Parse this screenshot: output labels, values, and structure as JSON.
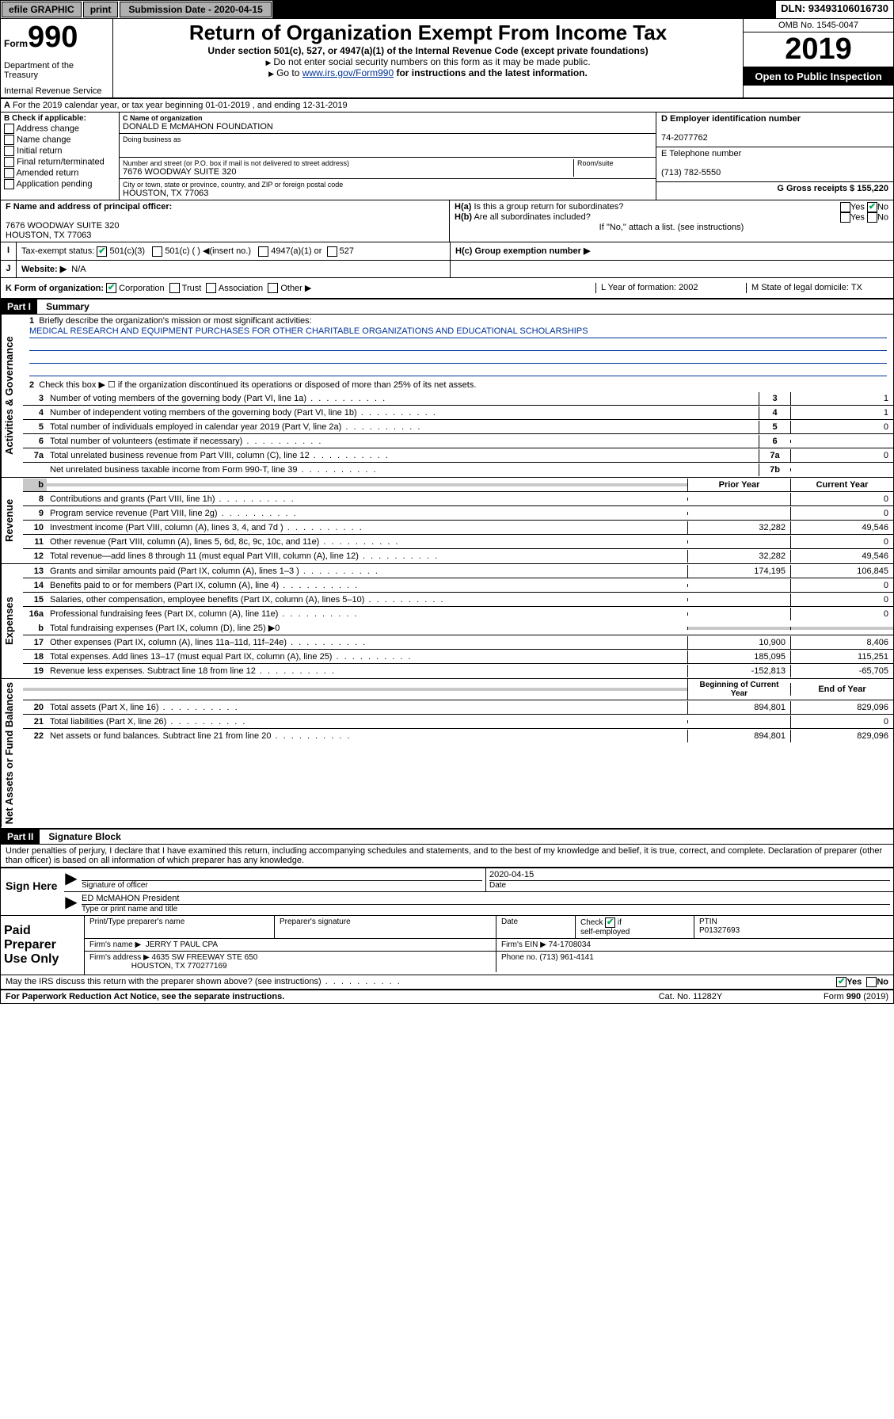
{
  "topbar": {
    "efile": "efile GRAPHIC",
    "print": "print",
    "subdate_lbl": "Submission Date - 2020-04-15",
    "dln": "DLN: 93493106016730"
  },
  "header": {
    "form_word": "Form",
    "form_num": "990",
    "dept": "Department of the Treasury",
    "irs": "Internal Revenue Service",
    "title": "Return of Organization Exempt From Income Tax",
    "subtitle": "Under section 501(c), 527, or 4947(a)(1) of the Internal Revenue Code (except private foundations)",
    "nossn": "Do not enter social security numbers on this form as it may be made public.",
    "goto_pre": "Go to ",
    "goto_link": "www.irs.gov/Form990",
    "goto_post": " for instructions and the latest information.",
    "omb": "OMB No. 1545-0047",
    "year": "2019",
    "open": "Open to Public Inspection"
  },
  "secA": {
    "period": "For the 2019 calendar year, or tax year beginning 01-01-2019    , and ending 12-31-2019",
    "b_lbl": "B Check if applicable:",
    "b_items": [
      "Address change",
      "Name change",
      "Initial return",
      "Final return/terminated",
      "Amended return",
      "Application pending"
    ],
    "c_lbl": "C Name of organization",
    "c_val": "DONALD E McMAHON FOUNDATION",
    "dba_lbl": "Doing business as",
    "addr_lbl": "Number and street (or P.O. box if mail is not delivered to street address)",
    "room_lbl": "Room/suite",
    "addr_val": "7676 WOODWAY SUITE 320",
    "city_lbl": "City or town, state or province, country, and ZIP or foreign postal code",
    "city_val": "HOUSTON, TX  77063",
    "d_lbl": "D Employer identification number",
    "d_val": "74-2077762",
    "e_lbl": "E Telephone number",
    "e_val": "(713) 782-5550",
    "g_lbl": "G Gross receipts $ 155,220",
    "f_lbl": "F Name and address of principal officer:",
    "f_addr1": "7676 WOODWAY SUITE 320",
    "f_addr2": "HOUSTON, TX  77063",
    "ha_lbl": "H(a)  Is this a group return for subordinates?",
    "hb_lbl": "H(b)  Are all subordinates included?",
    "h_attach": "If \"No,\" attach a list. (see instructions)",
    "hc_lbl": "H(c)  Group exemption number ▶",
    "yes": "Yes",
    "no": "No"
  },
  "statusI": {
    "lbl": "Tax-exempt status:",
    "c3": "501(c)(3)",
    "c": "501(c) (   ) ◀(insert no.)",
    "a1": "4947(a)(1) or",
    "s527": "527"
  },
  "J": {
    "lbl": "Website: ▶",
    "val": "N/A"
  },
  "K": {
    "lbl": "K Form of organization:",
    "corp": "Corporation",
    "trust": "Trust",
    "assoc": "Association",
    "other": "Other ▶",
    "L": "L Year of formation: 2002",
    "M": "M State of legal domicile: TX"
  },
  "part1": {
    "hdr": "Part I",
    "title": "Summary",
    "l1_lbl": "Briefly describe the organization's mission or most significant activities:",
    "l1_val": "MEDICAL RESEARCH AND EQUIPMENT PURCHASES FOR OTHER CHARITABLE ORGANIZATIONS AND EDUCATIONAL SCHOLARSHIPS",
    "l2": "Check this box ▶ ☐  if the organization discontinued its operations or disposed of more than 25% of its net assets.",
    "lines": [
      {
        "n": "3",
        "t": "Number of voting members of the governing body (Part VI, line 1a)",
        "box": "3",
        "v": "1"
      },
      {
        "n": "4",
        "t": "Number of independent voting members of the governing body (Part VI, line 1b)",
        "box": "4",
        "v": "1"
      },
      {
        "n": "5",
        "t": "Total number of individuals employed in calendar year 2019 (Part V, line 2a)",
        "box": "5",
        "v": "0"
      },
      {
        "n": "6",
        "t": "Total number of volunteers (estimate if necessary)",
        "box": "6",
        "v": ""
      },
      {
        "n": "7a",
        "t": "Total unrelated business revenue from Part VIII, column (C), line 12",
        "box": "7a",
        "v": "0"
      },
      {
        "n": "",
        "t": "Net unrelated business taxable income from Form 990-T, line 39",
        "box": "7b",
        "v": ""
      }
    ],
    "vlbl_gov": "Activities & Governance",
    "vlbl_rev": "Revenue",
    "vlbl_exp": "Expenses",
    "vlbl_net": "Net Assets or Fund Balances",
    "prior": "Prior Year",
    "current": "Current Year",
    "rev": [
      {
        "n": "8",
        "t": "Contributions and grants (Part VIII, line 1h)",
        "p": "",
        "c": "0"
      },
      {
        "n": "9",
        "t": "Program service revenue (Part VIII, line 2g)",
        "p": "",
        "c": "0"
      },
      {
        "n": "10",
        "t": "Investment income (Part VIII, column (A), lines 3, 4, and 7d )",
        "p": "32,282",
        "c": "49,546"
      },
      {
        "n": "11",
        "t": "Other revenue (Part VIII, column (A), lines 5, 6d, 8c, 9c, 10c, and 11e)",
        "p": "",
        "c": "0"
      },
      {
        "n": "12",
        "t": "Total revenue—add lines 8 through 11 (must equal Part VIII, column (A), line 12)",
        "p": "32,282",
        "c": "49,546"
      }
    ],
    "exp": [
      {
        "n": "13",
        "t": "Grants and similar amounts paid (Part IX, column (A), lines 1–3 )",
        "p": "174,195",
        "c": "106,845"
      },
      {
        "n": "14",
        "t": "Benefits paid to or for members (Part IX, column (A), line 4)",
        "p": "",
        "c": "0"
      },
      {
        "n": "15",
        "t": "Salaries, other compensation, employee benefits (Part IX, column (A), lines 5–10)",
        "p": "",
        "c": "0"
      },
      {
        "n": "16a",
        "t": "Professional fundraising fees (Part IX, column (A), line 11e)",
        "p": "",
        "c": "0"
      }
    ],
    "exp_b": "Total fundraising expenses (Part IX, column (D), line 25) ▶0",
    "exp2": [
      {
        "n": "17",
        "t": "Other expenses (Part IX, column (A), lines 11a–11d, 11f–24e)",
        "p": "10,900",
        "c": "8,406"
      },
      {
        "n": "18",
        "t": "Total expenses. Add lines 13–17 (must equal Part IX, column (A), line 25)",
        "p": "185,095",
        "c": "115,251"
      },
      {
        "n": "19",
        "t": "Revenue less expenses. Subtract line 18 from line 12",
        "p": "-152,813",
        "c": "-65,705"
      }
    ],
    "beg": "Beginning of Current Year",
    "end": "End of Year",
    "net": [
      {
        "n": "20",
        "t": "Total assets (Part X, line 16)",
        "p": "894,801",
        "c": "829,096"
      },
      {
        "n": "21",
        "t": "Total liabilities (Part X, line 26)",
        "p": "",
        "c": "0"
      },
      {
        "n": "22",
        "t": "Net assets or fund balances. Subtract line 21 from line 20",
        "p": "894,801",
        "c": "829,096"
      }
    ]
  },
  "part2": {
    "hdr": "Part II",
    "title": "Signature Block",
    "decl": "Under penalties of perjury, I declare that I have examined this return, including accompanying schedules and statements, and to the best of my knowledge and belief, it is true, correct, and complete. Declaration of preparer (other than officer) is based on all information of which preparer has any knowledge.",
    "sign": "Sign Here",
    "sigoff": "Signature of officer",
    "date": "Date",
    "datev": "2020-04-15",
    "name": "ED McMAHON  President",
    "name_lbl": "Type or print name and title",
    "paid": "Paid Preparer Use Only",
    "pname_lbl": "Print/Type preparer's name",
    "psig_lbl": "Preparer's signature",
    "pdate_lbl": "Date",
    "pcheck": "Check ☑ if self-employed",
    "ptin_lbl": "PTIN",
    "ptin": "P01327693",
    "fname_lbl": "Firm's name    ▶",
    "fname": "JERRY T PAUL CPA",
    "fein_lbl": "Firm's EIN ▶",
    "fein": "74-1708034",
    "faddr_lbl": "Firm's address ▶",
    "faddr1": "4635 SW FREEWAY STE 650",
    "faddr2": "HOUSTON, TX  770277169",
    "fphone_lbl": "Phone no.",
    "fphone": "(713) 961-4141",
    "discuss": "May the IRS discuss this return with the preparer shown above? (see instructions)"
  },
  "footer": {
    "pra": "For Paperwork Reduction Act Notice, see the separate instructions.",
    "cat": "Cat. No. 11282Y",
    "form": "Form 990 (2019)"
  }
}
